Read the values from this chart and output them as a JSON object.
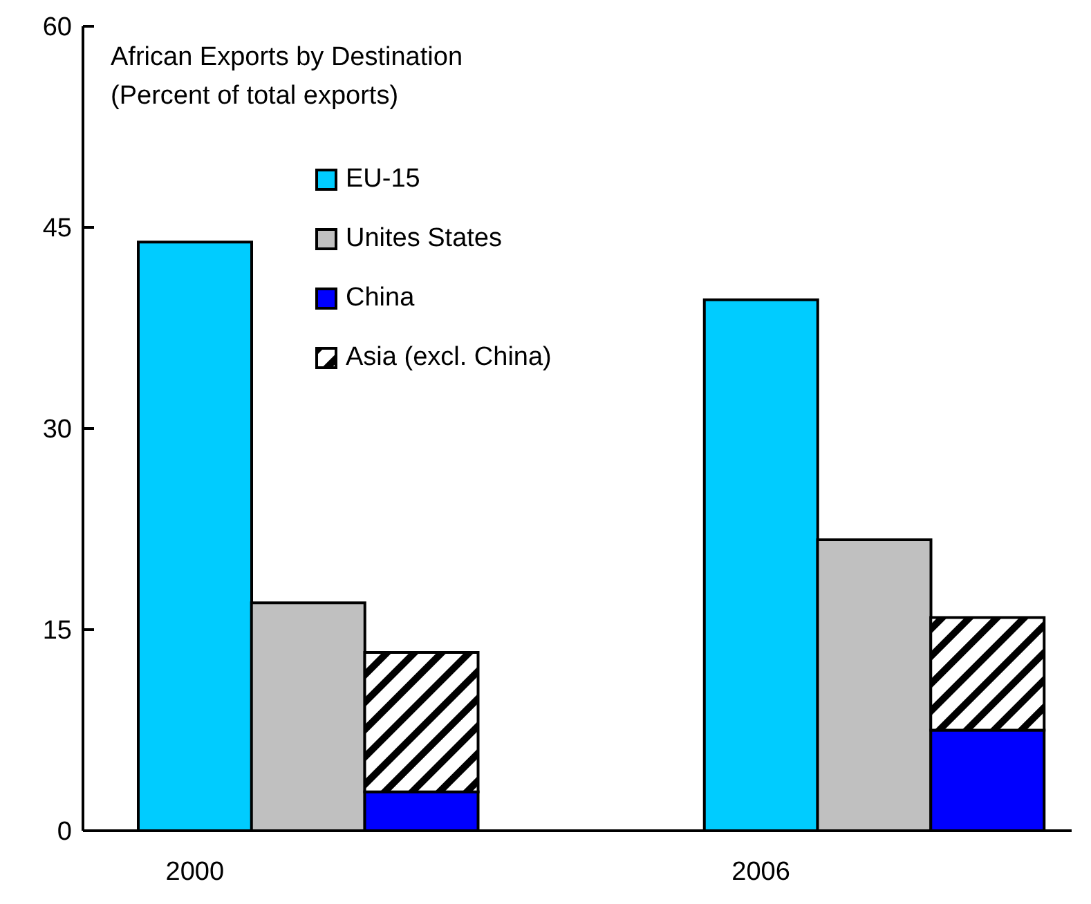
{
  "chart_data": {
    "type": "bar",
    "title": "African Exports by Destination",
    "subtitle": "(Percent of total exports)",
    "categories": [
      "2000",
      null,
      null,
      null,
      null,
      "2006",
      null,
      null
    ],
    "series": [
      {
        "name": "EU-15",
        "color": "#00ccff",
        "values": [
          43.9,
          null,
          null,
          null,
          null,
          39.6,
          null,
          null
        ]
      },
      {
        "name": "Unites States",
        "color": "#c0c0c0",
        "values": [
          null,
          17.0,
          null,
          null,
          null,
          null,
          21.7,
          null
        ]
      },
      {
        "name": "China",
        "color": "#0000ff",
        "values": [
          null,
          null,
          2.9,
          null,
          null,
          null,
          null,
          7.5
        ]
      },
      {
        "name": "Asia (excl. China)",
        "color": "#000000",
        "values": [
          null,
          null,
          10.4,
          null,
          null,
          null,
          null,
          8.4
        ]
      }
    ],
    "stacked": true,
    "ylim": [
      0,
      60
    ],
    "yticks": [
      0,
      15,
      30,
      45,
      60
    ],
    "legend": "top"
  }
}
